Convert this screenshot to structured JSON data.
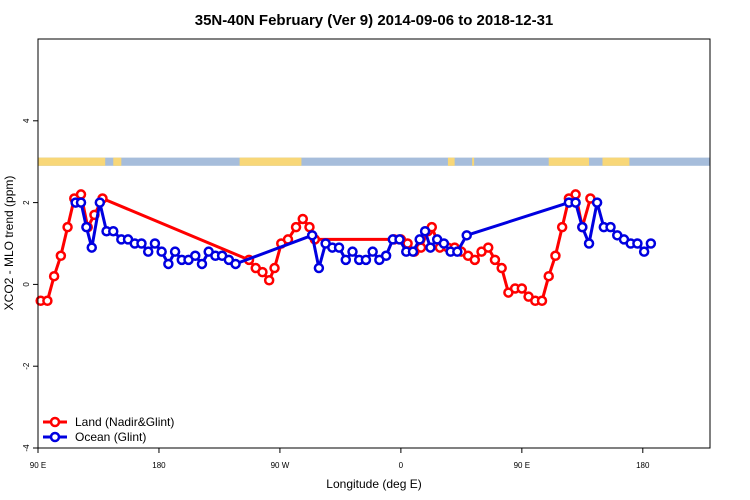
{
  "chart_data": {
    "type": "line",
    "title": "35N-40N February (Ver 9)   2014-09-06 to 2018-12-31",
    "xlabel": "Longitude (deg E)",
    "ylabel": "XCO2 - MLO trend (ppm)",
    "xlim": [
      90,
      590
    ],
    "ylim": [
      -4,
      6
    ],
    "xticks": [
      {
        "value": 90,
        "label": "90 E"
      },
      {
        "value": 180,
        "label": "180"
      },
      {
        "value": 270,
        "label": "90 W"
      },
      {
        "value": 360,
        "label": "0"
      },
      {
        "value": 450,
        "label": "90 E"
      },
      {
        "value": 540,
        "label": "180"
      }
    ],
    "yticks": [
      {
        "value": -4,
        "label": "-4"
      },
      {
        "value": -2,
        "label": "-2"
      },
      {
        "value": 0,
        "label": "0"
      },
      {
        "value": 2,
        "label": "2"
      },
      {
        "value": 4,
        "label": "4"
      }
    ],
    "legend_position": "bottom-left",
    "land_strip": {
      "y_range": [
        2.9,
        3.1
      ],
      "land_color": "#f8d778",
      "ocean_color": "#a6bddb",
      "land_segments": [
        [
          90,
          140
        ],
        [
          146,
          152
        ],
        [
          240,
          286
        ],
        [
          395,
          400
        ],
        [
          413,
          413
        ],
        [
          470,
          500
        ],
        [
          510,
          530
        ]
      ]
    },
    "series": [
      {
        "name": "Land (Nadir&Glint)",
        "color": "#ff0000",
        "points": [
          [
            92,
            -0.4
          ],
          [
            97,
            -0.4
          ],
          [
            102,
            0.2
          ],
          [
            107,
            0.7
          ],
          [
            112,
            1.4
          ],
          [
            117,
            2.1
          ],
          [
            122,
            2.2
          ],
          [
            127,
            1.4
          ],
          [
            132,
            1.7
          ],
          [
            138,
            2.1
          ],
          [
            247,
            0.6
          ],
          [
            252,
            0.4
          ],
          [
            257,
            0.3
          ],
          [
            262,
            0.1
          ],
          [
            266,
            0.4
          ],
          [
            271,
            1.0
          ],
          [
            276,
            1.1
          ],
          [
            282,
            1.4
          ],
          [
            287,
            1.6
          ],
          [
            292,
            1.4
          ],
          [
            296,
            1.1
          ],
          [
            355,
            1.1
          ],
          [
            360,
            1.1
          ],
          [
            365,
            1.0
          ],
          [
            370,
            0.8
          ],
          [
            375,
            0.9
          ],
          [
            380,
            1.3
          ],
          [
            383,
            1.4
          ],
          [
            389,
            0.9
          ],
          [
            395,
            0.9
          ],
          [
            400,
            0.9
          ],
          [
            405,
            0.8
          ],
          [
            410,
            0.7
          ],
          [
            415,
            0.6
          ],
          [
            420,
            0.8
          ],
          [
            425,
            0.9
          ],
          [
            430,
            0.6
          ],
          [
            435,
            0.4
          ],
          [
            440,
            -0.2
          ],
          [
            445,
            -0.1
          ],
          [
            450,
            -0.1
          ],
          [
            455,
            -0.3
          ],
          [
            460,
            -0.4
          ],
          [
            465,
            -0.4
          ],
          [
            470,
            0.2
          ],
          [
            475,
            0.7
          ],
          [
            480,
            1.4
          ],
          [
            485,
            2.1
          ],
          [
            490,
            2.2
          ],
          [
            495,
            1.4
          ],
          [
            501,
            2.1
          ]
        ]
      },
      {
        "name": "Ocean (Glint)",
        "color": "#0000e0",
        "points": [
          [
            118,
            2.0
          ],
          [
            122,
            2.0
          ],
          [
            126,
            1.4
          ],
          [
            130,
            0.9
          ],
          [
            136,
            2.0
          ],
          [
            141,
            1.3
          ],
          [
            146,
            1.3
          ],
          [
            152,
            1.1
          ],
          [
            157,
            1.1
          ],
          [
            162,
            1.0
          ],
          [
            167,
            1.0
          ],
          [
            172,
            0.8
          ],
          [
            177,
            1.0
          ],
          [
            182,
            0.8
          ],
          [
            187,
            0.5
          ],
          [
            192,
            0.8
          ],
          [
            197,
            0.6
          ],
          [
            202,
            0.6
          ],
          [
            207,
            0.7
          ],
          [
            212,
            0.5
          ],
          [
            217,
            0.8
          ],
          [
            222,
            0.7
          ],
          [
            227,
            0.7
          ],
          [
            232,
            0.6
          ],
          [
            237,
            0.5
          ],
          [
            294,
            1.2
          ],
          [
            299,
            0.4
          ],
          [
            304,
            1.0
          ],
          [
            309,
            0.9
          ],
          [
            314,
            0.9
          ],
          [
            319,
            0.6
          ],
          [
            324,
            0.8
          ],
          [
            329,
            0.6
          ],
          [
            334,
            0.6
          ],
          [
            339,
            0.8
          ],
          [
            344,
            0.6
          ],
          [
            349,
            0.7
          ],
          [
            354,
            1.1
          ],
          [
            359,
            1.1
          ],
          [
            364,
            0.8
          ],
          [
            369,
            0.8
          ],
          [
            374,
            1.1
          ],
          [
            378,
            1.3
          ],
          [
            382,
            0.9
          ],
          [
            387,
            1.1
          ],
          [
            392,
            1.0
          ],
          [
            397,
            0.8
          ],
          [
            402,
            0.8
          ],
          [
            409,
            1.2
          ],
          [
            485,
            2.0
          ],
          [
            490,
            2.0
          ],
          [
            495,
            1.4
          ],
          [
            500,
            1.0
          ],
          [
            506,
            2.0
          ],
          [
            511,
            1.4
          ],
          [
            516,
            1.4
          ],
          [
            521,
            1.2
          ],
          [
            526,
            1.1
          ],
          [
            531,
            1.0
          ],
          [
            536,
            1.0
          ],
          [
            541,
            0.8
          ],
          [
            546,
            1.0
          ]
        ]
      }
    ]
  }
}
